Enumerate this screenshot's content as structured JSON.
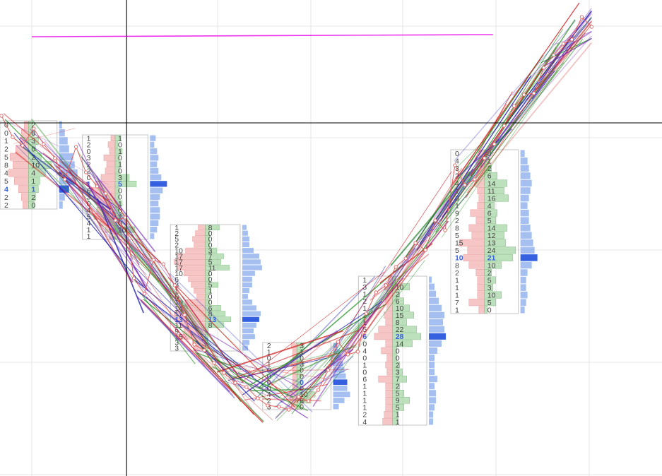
{
  "chart_data": {
    "type": "line",
    "title": "",
    "xlabel": "",
    "ylabel": "",
    "grid": true,
    "legend": "none",
    "x_range": [
      0,
      940
    ],
    "y_range": [
      0,
      674
    ],
    "crosshair": {
      "x": 180,
      "y": 174,
      "color": "#000000"
    },
    "colors": {
      "sell": "#f4b3b3",
      "sell_border": "#e07a7a",
      "buy": "#a8d8a8",
      "buy_border": "#5aaa5a",
      "volume": "#7ea4ea",
      "poc": "#3560e0",
      "grid": "#e6e6e6",
      "profile_border": "#c4c4c4",
      "level_line": "#ee33ee",
      "price_line": "#e06060",
      "fan_red": "#d01818",
      "fan_green": "#1a8a1a",
      "fan_blue": "#1a1ab0",
      "fan_purple": "#7a2ab8"
    },
    "level_line": {
      "x": [
        45,
        700
      ],
      "y": [
        622,
        625
      ]
    },
    "price_path": {
      "x": [
        2,
        18,
        32,
        48,
        62,
        78,
        92,
        108,
        122,
        138,
        150,
        164,
        178,
        190,
        205,
        218,
        232,
        248,
        262,
        276,
        290,
        304,
        318,
        334,
        350,
        366,
        380,
        396,
        410,
        424,
        438,
        452,
        466,
        480,
        494,
        508,
        520,
        534,
        548,
        562,
        576,
        590,
        604,
        618,
        632,
        646,
        660,
        674,
        688,
        702,
        716,
        730,
        744,
        758,
        772,
        786,
        800,
        812,
        826,
        840
      ],
      "y": [
        510,
        480,
        468,
        492,
        470,
        450,
        420,
        466,
        430,
        410,
        400,
        362,
        366,
        280,
        258,
        306,
        300,
        270,
        228,
        186,
        178,
        160,
        146,
        132,
        126,
        110,
        100,
        98,
        94,
        112,
        106,
        122,
        150,
        190,
        172,
        176,
        230,
        260,
        270,
        296,
        308,
        330,
        320,
        362,
        348,
        440,
        412,
        420,
        450,
        470,
        496,
        524,
        540,
        542,
        578,
        596,
        612,
        618,
        650,
        636
      ]
    },
    "fan_lines": {
      "count": 180,
      "colors": [
        "fan_red",
        "fan_green",
        "fan_blue",
        "fan_purple"
      ]
    },
    "profiles": [
      {
        "box": [
          0,
          81,
          503,
          378
        ],
        "sell": [
          "0",
          "0",
          "1",
          "2",
          "5",
          "8",
          "4",
          "5",
          "4",
          "2",
          "2"
        ],
        "buy": [
          "2",
          "0",
          "3",
          "0",
          "2",
          "10",
          "4",
          "1",
          "1",
          "2",
          "0"
        ],
        "sell_w": [
          6,
          10,
          12,
          18,
          26,
          22,
          28,
          20,
          14,
          10,
          8
        ],
        "buy_w": [
          6,
          8,
          14,
          10,
          18,
          32,
          24,
          16,
          14,
          10,
          8
        ],
        "vol_w": [
          4,
          8,
          12,
          14,
          20,
          22,
          26,
          24,
          14,
          8,
          5
        ],
        "poc": 8
      },
      {
        "box": [
          117,
          210,
          483,
          335
        ],
        "sell": [
          "1",
          "2",
          "0",
          "3",
          "2",
          "2",
          "0",
          "1",
          "6",
          "3",
          "0",
          "4",
          "5",
          "4",
          "1",
          "1"
        ],
        "buy": [
          "1",
          "0",
          "1",
          "0",
          "1",
          "0",
          "3",
          "5",
          "0",
          "0",
          "1",
          "0",
          "1",
          "0",
          "10",
          ""
        ],
        "sell_w": [
          6,
          10,
          8,
          16,
          12,
          14,
          20,
          28,
          34,
          30,
          22,
          26,
          30,
          22,
          14,
          8
        ],
        "buy_w": [
          8,
          4,
          10,
          6,
          8,
          6,
          20,
          30,
          6,
          6,
          10,
          6,
          10,
          6,
          28,
          4
        ],
        "vol_w": [
          8,
          6,
          10,
          12,
          10,
          12,
          16,
          24,
          18,
          14,
          12,
          14,
          14,
          12,
          10,
          6
        ],
        "poc": 7
      },
      {
        "box": [
          242,
          341,
          356,
          177
        ],
        "sell": [
          "1",
          "2",
          "5",
          "2",
          "10",
          "17",
          "17",
          "17",
          "10",
          "6",
          "3",
          "1",
          "0",
          "10",
          "14",
          "17",
          "13",
          "11",
          "9",
          "15",
          "3",
          "3"
        ],
        "buy": [
          "8",
          "0",
          "0",
          "0",
          "3",
          "7",
          "5",
          "11",
          "0",
          "0",
          "5",
          "1",
          "0",
          "0",
          "6",
          "8",
          "13",
          "8",
          "",
          "",
          "",
          ""
        ],
        "sell_w": [
          10,
          14,
          18,
          16,
          28,
          40,
          44,
          40,
          30,
          24,
          20,
          16,
          12,
          28,
          38,
          44,
          40,
          34,
          30,
          40,
          18,
          16
        ],
        "buy_w": [
          20,
          6,
          6,
          6,
          16,
          26,
          22,
          34,
          6,
          6,
          18,
          8,
          4,
          6,
          22,
          28,
          36,
          26,
          4,
          4,
          4,
          4
        ],
        "vol_w": [
          6,
          8,
          10,
          10,
          16,
          24,
          26,
          28,
          18,
          14,
          14,
          10,
          8,
          14,
          20,
          26,
          24,
          20,
          16,
          18,
          10,
          8
        ],
        "poc": 16
      },
      {
        "box": [
          373,
          470,
          189,
          94
        ],
        "sell": [
          "2",
          "1",
          "0",
          "1",
          "0",
          "0",
          "0",
          "0",
          "4",
          "2",
          "3"
        ],
        "buy": [
          "3",
          "1",
          "0",
          "3",
          "0",
          "0",
          "0",
          "0",
          "10",
          "6",
          "0"
        ],
        "sell_w": [
          8,
          6,
          6,
          8,
          6,
          6,
          6,
          6,
          14,
          10,
          8
        ],
        "buy_w": [
          10,
          8,
          6,
          10,
          6,
          6,
          6,
          6,
          26,
          20,
          6
        ],
        "vol_w": [
          6,
          10,
          12,
          14,
          16,
          18,
          20,
          20,
          24,
          16,
          8
        ],
        "poc": 6
      },
      {
        "box": [
          509,
          606,
          283,
          72
        ],
        "sell": [
          "1",
          "3",
          "1",
          "2",
          "1",
          "2",
          "1",
          "5",
          "6",
          "0",
          "4",
          "0",
          "1",
          "0",
          "6",
          "1",
          "1",
          "1",
          "1",
          "2",
          "4"
        ],
        "buy": [
          "",
          "10",
          "2",
          "6",
          "10",
          "15",
          "8",
          "22",
          "28",
          "14",
          "0",
          "0",
          "2",
          "3",
          "7",
          "2",
          "5",
          "9",
          "5",
          "1",
          "1"
        ],
        "sell_w": [
          6,
          12,
          8,
          10,
          8,
          12,
          10,
          20,
          26,
          10,
          16,
          8,
          10,
          8,
          20,
          10,
          10,
          10,
          10,
          12,
          14
        ],
        "buy_w": [
          4,
          24,
          10,
          16,
          24,
          30,
          20,
          34,
          40,
          28,
          6,
          6,
          10,
          14,
          20,
          10,
          16,
          24,
          16,
          8,
          8
        ],
        "vol_w": [
          4,
          8,
          10,
          14,
          18,
          22,
          20,
          22,
          24,
          18,
          12,
          8,
          8,
          8,
          12,
          8,
          10,
          10,
          8,
          6,
          6
        ],
        "poc": 8
      },
      {
        "box": [
          640,
          736,
          462,
          230
        ],
        "sell": [
          "0",
          "4",
          "3",
          "2",
          "4",
          "1",
          "0",
          "1",
          "9",
          "2",
          "8",
          "5",
          "15",
          "5",
          "10",
          "8",
          "2",
          "1",
          "1",
          "1",
          "7",
          "1"
        ],
        "buy": [
          "0",
          "1",
          "2",
          "6",
          "14",
          "11",
          "16",
          "4",
          "6",
          "5",
          "14",
          "12",
          "13",
          "24",
          "21",
          "10",
          "2",
          "5",
          "3",
          "10",
          "5",
          "0"
        ],
        "sell_w": [
          8,
          12,
          10,
          10,
          14,
          10,
          8,
          10,
          20,
          12,
          22,
          18,
          36,
          24,
          30,
          22,
          12,
          10,
          10,
          10,
          22,
          8
        ],
        "buy_w": [
          4,
          6,
          10,
          18,
          32,
          28,
          34,
          14,
          18,
          16,
          32,
          28,
          30,
          44,
          40,
          24,
          10,
          16,
          12,
          24,
          16,
          4
        ],
        "vol_w": [
          6,
          10,
          12,
          14,
          16,
          14,
          12,
          10,
          12,
          12,
          14,
          16,
          18,
          20,
          24,
          16,
          10,
          8,
          8,
          10,
          8,
          6
        ],
        "poc": 14
      }
    ]
  }
}
